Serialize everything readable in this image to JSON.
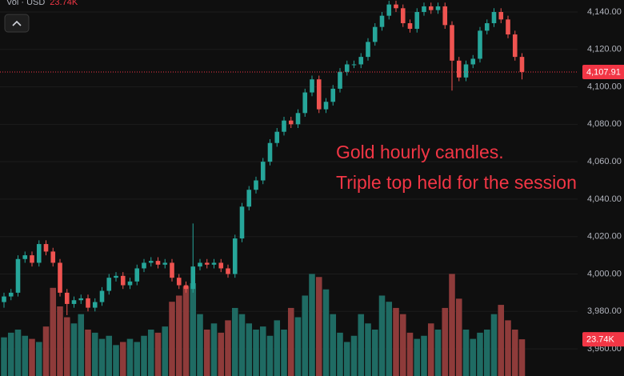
{
  "chart_data": {
    "type": "candlestick",
    "volume_title": "Vol · USD",
    "volume_label": "23.74K",
    "last_price_label": "4,107.91",
    "annotations": [
      "Gold hourly candles.",
      "Triple top held for the session."
    ],
    "up_color": "#26a69a",
    "down_color": "#ef5350",
    "volume_up_color": "#1f6b63",
    "volume_down_color": "#8e3b3a",
    "price_line_color": "#f23645",
    "ylim": [
      3945.5,
      4146.4
    ],
    "yticks": [
      {
        "value": 3960,
        "label": "3,960.00"
      },
      {
        "value": 3980,
        "label": "3,980.00"
      },
      {
        "value": 4000,
        "label": "4,000.00"
      },
      {
        "value": 4020,
        "label": "4,020.00"
      },
      {
        "value": 4040,
        "label": "4,040.00"
      },
      {
        "value": 4060,
        "label": "4,060.00"
      },
      {
        "value": 4080,
        "label": "4,080.00"
      },
      {
        "value": 4100,
        "label": "4,100.00"
      },
      {
        "value": 4120,
        "label": "4,120.00"
      },
      {
        "value": 4140,
        "label": "4,140.00"
      }
    ],
    "volume_lim": [
      0,
      120
    ],
    "grid": true,
    "open": [
      3985,
      3988,
      3990,
      4008,
      4010,
      4006,
      4016,
      4012,
      4006,
      3990,
      3984,
      3986,
      3987,
      3982,
      3985,
      3991,
      3998,
      3999,
      3994,
      3996,
      4003,
      4006,
      4007,
      4005,
      4006,
      3998,
      3994,
      3992,
      4004,
      4006,
      4005,
      4006,
      4003,
      4000,
      4019,
      4036,
      4045,
      4050,
      4060,
      4070,
      4076,
      4082,
      4080,
      4086,
      4097,
      4104,
      4088,
      4092,
      4099,
      4108,
      4112,
      4112,
      4116,
      4124,
      4132,
      4138,
      4144,
      4142,
      4134,
      4131,
      4140,
      4143,
      4141,
      4143,
      4133,
      4114,
      4105,
      4112,
      4115,
      4130,
      4134,
      4140,
      4136,
      4128,
      4116
    ],
    "high": [
      3990,
      3992,
      4010,
      4012,
      4012,
      4018,
      4018,
      4014,
      4008,
      3992,
      3988,
      3989,
      3989,
      3987,
      3993,
      4000,
      4001,
      4001,
      3998,
      4005,
      4008,
      4009,
      4009,
      4008,
      4008,
      4000,
      3996,
      4027,
      4008,
      4008,
      4008,
      4008,
      4005,
      4021,
      4038,
      4047,
      4052,
      4062,
      4072,
      4078,
      4084,
      4084,
      4088,
      4099,
      4106,
      4106,
      4094,
      4101,
      4110,
      4114,
      4114,
      4118,
      4126,
      4134,
      4140,
      4146,
      4146,
      4144,
      4136,
      4142,
      4145,
      4145,
      4145,
      4145,
      4135,
      4116,
      4114,
      4117,
      4132,
      4136,
      4142,
      4142,
      4138,
      4130,
      4118
    ],
    "low": [
      3982,
      3986,
      3988,
      4006,
      4004,
      4004,
      4010,
      4004,
      3988,
      3978,
      3982,
      3984,
      3980,
      3980,
      3983,
      3989,
      3996,
      3992,
      3992,
      3994,
      4001,
      4004,
      4003,
      4003,
      3996,
      3992,
      3990,
      3990,
      4002,
      4003,
      4003,
      4001,
      3998,
      3998,
      4017,
      4034,
      4043,
      4048,
      4058,
      4068,
      4074,
      4078,
      4078,
      4084,
      4095,
      4086,
      4086,
      4090,
      4097,
      4106,
      4110,
      4110,
      4114,
      4122,
      4130,
      4136,
      4140,
      4132,
      4129,
      4129,
      4138,
      4139,
      4139,
      4131,
      4098,
      4103,
      4103,
      4110,
      4113,
      4128,
      4132,
      4134,
      4126,
      4114,
      4104
    ],
    "close": [
      3988,
      3990,
      4008,
      4010,
      4006,
      4016,
      4012,
      4006,
      3990,
      3984,
      3986,
      3987,
      3982,
      3985,
      3991,
      3998,
      3999,
      3994,
      3996,
      4003,
      4006,
      4007,
      4005,
      4006,
      3998,
      3994,
      3992,
      4004,
      4006,
      4005,
      4006,
      4003,
      4000,
      4019,
      4036,
      4045,
      4050,
      4060,
      4070,
      4076,
      4082,
      4080,
      4086,
      4097,
      4104,
      4088,
      4092,
      4099,
      4108,
      4112,
      4112,
      4116,
      4124,
      4132,
      4138,
      4144,
      4142,
      4134,
      4131,
      4140,
      4143,
      4141,
      4143,
      4133,
      4114,
      4105,
      4112,
      4115,
      4130,
      4134,
      4140,
      4136,
      4128,
      4116,
      4107.91
    ],
    "volume": [
      25,
      28,
      30,
      26,
      24,
      22,
      32,
      57,
      45,
      38,
      34,
      40,
      30,
      28,
      24,
      26,
      20,
      22,
      24,
      22,
      26,
      30,
      28,
      32,
      48,
      52,
      58,
      60,
      40,
      30,
      34,
      28,
      36,
      44,
      40,
      34,
      30,
      32,
      26,
      36,
      30,
      44,
      38,
      52,
      66,
      64,
      56,
      40,
      28,
      22,
      26,
      40,
      34,
      30,
      52,
      48,
      44,
      40,
      28,
      24,
      26,
      34,
      30,
      44,
      66,
      50,
      30,
      24,
      28,
      30,
      40,
      46,
      36,
      30,
      23.74
    ]
  }
}
